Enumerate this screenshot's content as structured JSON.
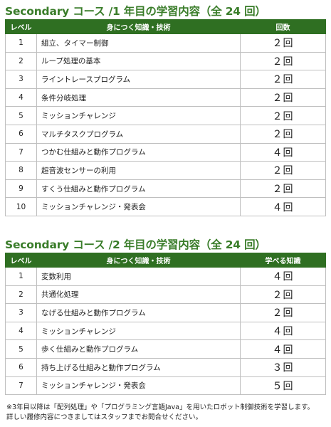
{
  "table1": {
    "title": "Secondary コース /1 年目の学習内容（全 24 回）",
    "headers": [
      "レベル",
      "身につく知識・技術",
      "回数"
    ],
    "rows": [
      {
        "level": "1",
        "skill": "組立、タイマー制御",
        "count": "２回"
      },
      {
        "level": "2",
        "skill": "ループ処理の基本",
        "count": "２回"
      },
      {
        "level": "3",
        "skill": "ライントレースプログラム",
        "count": "２回"
      },
      {
        "level": "4",
        "skill": "条件分岐処理",
        "count": "２回"
      },
      {
        "level": "5",
        "skill": "ミッションチャレンジ",
        "count": "２回"
      },
      {
        "level": "6",
        "skill": "マルチタスクプログラム",
        "count": "２回"
      },
      {
        "level": "7",
        "skill": "つかむ仕組みと動作プログラム",
        "count": "４回"
      },
      {
        "level": "8",
        "skill": "超音波センサーの利用",
        "count": "２回"
      },
      {
        "level": "9",
        "skill": "すくう仕組みと動作プログラム",
        "count": "２回"
      },
      {
        "level": "10",
        "skill": "ミッションチャレンジ・発表会",
        "count": "４回"
      }
    ]
  },
  "table2": {
    "title": "Secondary コース /2 年目の学習内容（全 24 回）",
    "headers": [
      "レベル",
      "身につく知識・技術",
      "学べる知識"
    ],
    "rows": [
      {
        "level": "1",
        "skill": "変数利用",
        "count": "４回"
      },
      {
        "level": "2",
        "skill": "共通化処理",
        "count": "２回"
      },
      {
        "level": "3",
        "skill": "なげる仕組みと動作プログラム",
        "count": "２回"
      },
      {
        "level": "4",
        "skill": "ミッションチャレンジ",
        "count": "４回"
      },
      {
        "level": "5",
        "skill": "歩く仕組みと動作プログラム",
        "count": "４回"
      },
      {
        "level": "6",
        "skill": "持ち上げる仕組みと動作プログラム",
        "count": "３回"
      },
      {
        "level": "7",
        "skill": "ミッションチャレンジ・発表会",
        "count": "５回"
      }
    ]
  },
  "notes": [
    "※3年目以降は「配列処理」や「プログラミング言語Java」を用いたロボット制御技術を学習します。",
    "詳しい履修内容につきましてはスタッフまでお問合せください。"
  ],
  "colors": {
    "header_bg": "#2f6f22",
    "title": "#3a7d2a",
    "border": "#bfbfbf"
  }
}
